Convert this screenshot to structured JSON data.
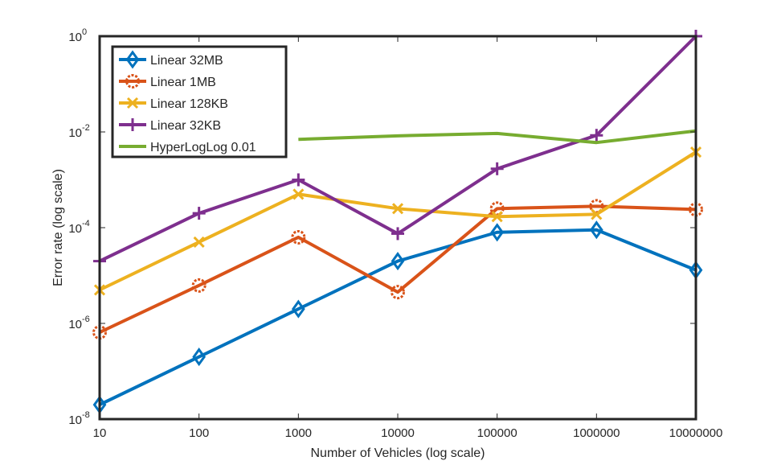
{
  "chart_data": {
    "type": "line",
    "x_scale": "log",
    "y_scale": "log",
    "x": [
      10,
      100,
      1000,
      10000,
      100000,
      1000000,
      10000000
    ],
    "xlim": [
      10,
      10000000
    ],
    "ylim": [
      1e-08,
      1
    ],
    "x_tick_labels": [
      "10",
      "100",
      "1000",
      "10000",
      "100000",
      "1000000",
      "10000000"
    ],
    "y_ticks": [
      {
        "base": "10",
        "exp": "-8",
        "value": 1e-08
      },
      {
        "base": "10",
        "exp": "-6",
        "value": 1e-06
      },
      {
        "base": "10",
        "exp": "-4",
        "value": 0.0001
      },
      {
        "base": "10",
        "exp": "-2",
        "value": 0.01
      },
      {
        "base": "10",
        "exp": "0",
        "value": 1
      }
    ],
    "xlabel": "Number of Vehicles (log scale)",
    "ylabel": "Error rate (log scale)",
    "legend_position": "top-left",
    "grid": false,
    "series": [
      {
        "name": "Linear 32MB",
        "color": "#0072BD",
        "marker": "diamond",
        "values": [
          2e-08,
          2e-07,
          2e-06,
          2e-05,
          8e-05,
          9e-05,
          1.3e-05
        ]
      },
      {
        "name": "Linear 1MB",
        "color": "#D95319",
        "marker": "circle",
        "values": [
          6.5e-07,
          6.2e-06,
          6.3e-05,
          4.5e-06,
          0.00025,
          0.00028,
          0.00024
        ]
      },
      {
        "name": "Linear 128KB",
        "color": "#EDB120",
        "marker": "x",
        "values": [
          5e-06,
          5e-05,
          0.0005,
          0.00025,
          0.00017,
          0.00019,
          0.0038
        ]
      },
      {
        "name": "Linear 32KB",
        "color": "#7E2F8E",
        "marker": "plus",
        "values": [
          2e-05,
          0.0002,
          0.001,
          7.5e-05,
          0.0017,
          0.0085,
          1.0
        ]
      },
      {
        "name": "HyperLogLog 0.01",
        "color": "#77AC30",
        "marker": "none",
        "values": [
          null,
          null,
          0.007,
          0.0083,
          0.0093,
          0.006,
          0.0105
        ]
      }
    ]
  }
}
